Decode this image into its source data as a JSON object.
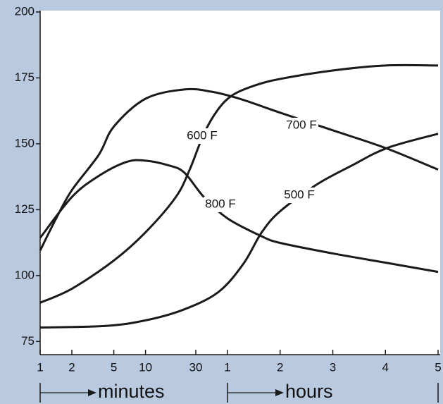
{
  "chart_data": {
    "type": "line",
    "xscale": {
      "log": [
        1,
        60
      ],
      "linear": [
        60,
        300
      ]
    },
    "xlim": [
      1,
      300
    ],
    "xticks": [
      1,
      2,
      5,
      10,
      30,
      {
        "value": 60,
        "label": "1"
      },
      {
        "value": 120,
        "label": "2"
      },
      {
        "value": 180,
        "label": "3"
      },
      {
        "value": 240,
        "label": "4"
      },
      {
        "value": 300,
        "label": "5"
      }
    ],
    "xlabel": [
      "minutes",
      "hours"
    ],
    "ylim": [
      70,
      200
    ],
    "yticks": [
      75,
      100,
      125,
      150,
      175,
      200
    ],
    "series": [
      {
        "name": "500 F",
        "color": "#1a1a1a",
        "x": [
          1,
          4.2,
          10,
          22.7,
          49,
          78,
          99,
          120,
          162,
          202,
          242,
          300
        ],
        "values": [
          80.3,
          80.9,
          83,
          87,
          93.7,
          104.4,
          116.4,
          124.4,
          134.6,
          141.8,
          148.4,
          153.8
        ]
      },
      {
        "name": "600 F",
        "color": "#1a1a1a",
        "x": [
          1,
          2,
          5,
          10,
          19.4,
          26.4,
          35.8,
          49,
          66,
          90,
          120,
          180,
          240,
          300
        ],
        "values": [
          89.7,
          95,
          105.7,
          116.4,
          129.8,
          140.4,
          153.8,
          163.1,
          168.5,
          172,
          174.6,
          177.8,
          179.7,
          179.7
        ]
      },
      {
        "name": "700 F",
        "color": "#1a1a1a",
        "x": [
          1,
          1.42,
          2,
          3.6,
          5,
          10,
          23.3,
          41.7,
          73.6,
          120,
          180,
          240,
          300
        ],
        "values": [
          109.5,
          121.7,
          132.4,
          145.8,
          156.5,
          167.1,
          170.6,
          169.8,
          167.1,
          161.8,
          155.1,
          148.4,
          140.2
        ]
      },
      {
        "name": "800 F",
        "color": "#1a1a1a",
        "x": [
          1,
          2,
          3.6,
          6.6,
          10,
          16.6,
          23.3,
          35.8,
          60,
          97.7,
          120,
          180,
          240,
          300
        ],
        "values": [
          114.3,
          129.8,
          137.8,
          143.1,
          143.6,
          141.8,
          139.1,
          129.8,
          121.7,
          115.1,
          112.4,
          108.4,
          104.9,
          101.4
        ]
      }
    ]
  }
}
